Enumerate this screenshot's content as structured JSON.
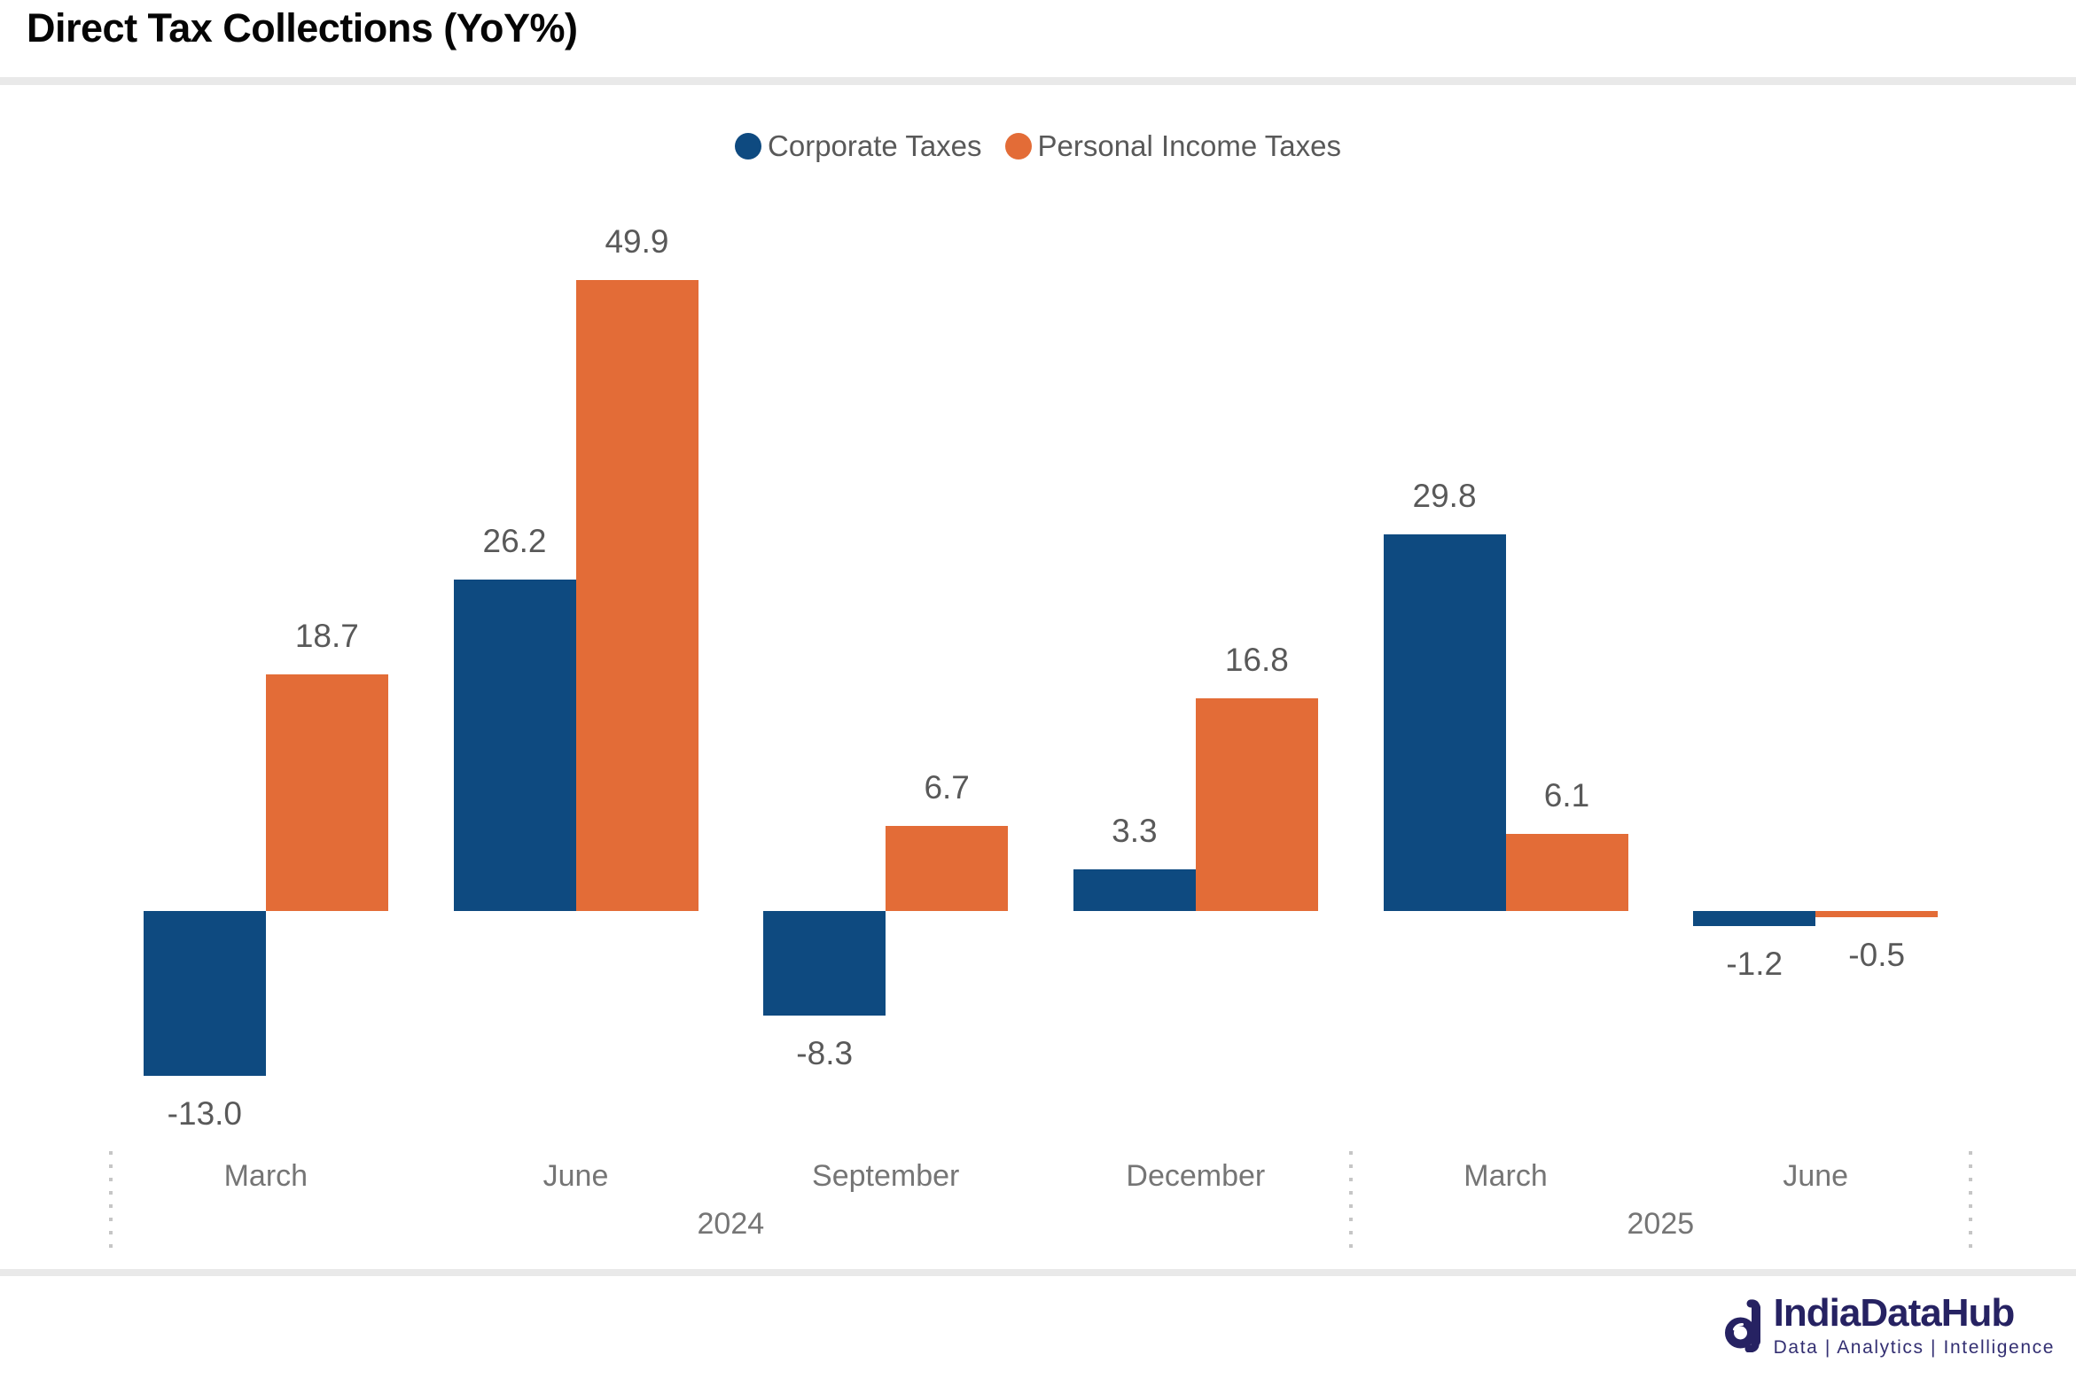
{
  "title": "Direct Tax Collections (YoY%)",
  "legend": {
    "items": [
      {
        "label": "Corporate Taxes",
        "color": "#0e4a80"
      },
      {
        "label": "Personal Income Taxes",
        "color": "#e36c37"
      }
    ]
  },
  "chart_data": {
    "type": "bar",
    "title": "Direct Tax Collections (YoY%)",
    "categories": [
      "March",
      "June",
      "September",
      "December",
      "March",
      "June"
    ],
    "year_groups": [
      {
        "label": "2024",
        "span": 4
      },
      {
        "label": "2025",
        "span": 2
      }
    ],
    "series": [
      {
        "name": "Corporate Taxes",
        "color": "#0e4a80",
        "values": [
          -13.0,
          26.2,
          -8.3,
          3.3,
          29.8,
          -1.2
        ]
      },
      {
        "name": "Personal Income Taxes",
        "color": "#e36c37",
        "values": [
          18.7,
          49.9,
          6.7,
          16.8,
          6.1,
          -0.5
        ]
      }
    ],
    "value_labels": [
      [
        "-13.0",
        "26.2",
        "-8.3",
        "3.3",
        "29.8",
        "-1.2"
      ],
      [
        "18.7",
        "49.9",
        "6.7",
        "16.8",
        "6.1",
        "-0.5"
      ]
    ],
    "ylim": [
      -13.0,
      49.9
    ],
    "baseline": 0,
    "grid": false,
    "legend_position": "top",
    "value_label_color": "#595959",
    "axis_label_color": "#757575",
    "separator_dot_color": "#c6c6c6",
    "divider_color": "#e9e9e9"
  },
  "footer": {
    "brand": "IndiaDataHub",
    "tagline": "Data | Analytics | Intelligence",
    "brand_color": "#262262"
  }
}
